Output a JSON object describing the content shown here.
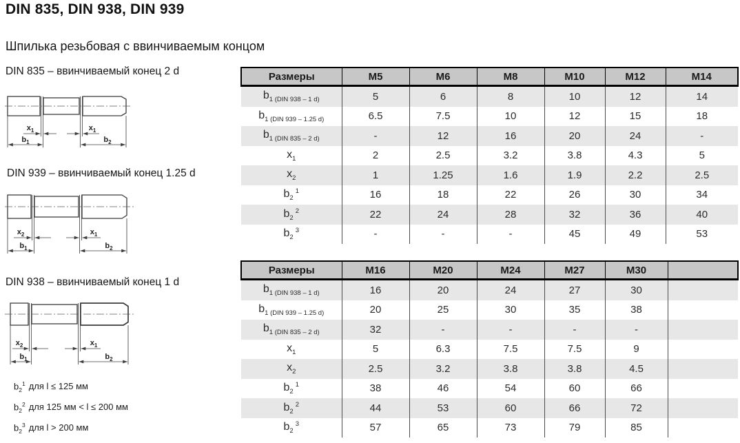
{
  "page": {
    "title": "DIN 835, DIN 938, DIN 939",
    "subtitle": "Шпилька резьбовая с ввинчиваемым концом"
  },
  "colors": {
    "header_bg": "#c7c7c7",
    "stripe_bg": "#e7e7e7",
    "border": "#000000",
    "drawing_line": "#3b3b3b"
  },
  "drawings": [
    {
      "caption": "DIN 835 – ввинчиваемый конец 2 d",
      "xl": {
        "base": "x",
        "sub": "1"
      },
      "xr": {
        "base": "x",
        "sub": "1"
      },
      "bl": {
        "base": "b",
        "sub": "1"
      },
      "br": {
        "base": "b",
        "sub": "2"
      }
    },
    {
      "caption": "DIN 939 – ввинчиваемый конец 1.25 d",
      "xl": {
        "base": "x",
        "sub": "2"
      },
      "xr": {
        "base": "x",
        "sub": "1"
      },
      "bl": {
        "base": "b",
        "sub": "1"
      },
      "br": {
        "base": "b",
        "sub": "2"
      }
    },
    {
      "caption": "DIN 938 – ввинчиваемый конец 1 d",
      "xl": {
        "base": "x",
        "sub": "2"
      },
      "xr": {
        "base": "x",
        "sub": "1"
      },
      "bl": {
        "base": "b",
        "sub": "1"
      },
      "br": {
        "base": "b",
        "sub": "2"
      }
    }
  ],
  "tables": [
    {
      "header": [
        "Размеры",
        "M5",
        "M6",
        "M8",
        "M10",
        "M12",
        "M14"
      ],
      "rows": [
        {
          "label": {
            "base": "b",
            "sub": "1 (DIN 938 – 1 d)",
            "sup": ""
          },
          "values": [
            "5",
            "6",
            "8",
            "10",
            "12",
            "14"
          ]
        },
        {
          "label": {
            "base": "b",
            "sub": "1 (DIN 939 – 1.25 d)",
            "sup": ""
          },
          "values": [
            "6.5",
            "7.5",
            "10",
            "12",
            "15",
            "18"
          ]
        },
        {
          "label": {
            "base": "b",
            "sub": "1 (DIN 835 – 2 d)",
            "sup": ""
          },
          "values": [
            "-",
            "12",
            "16",
            "20",
            "24",
            "-"
          ]
        },
        {
          "label": {
            "base": "x",
            "sub": "1",
            "sup": ""
          },
          "values": [
            "2",
            "2.5",
            "3.2",
            "3.8",
            "4.3",
            "5"
          ]
        },
        {
          "label": {
            "base": "x",
            "sub": "2",
            "sup": ""
          },
          "values": [
            "1",
            "1.25",
            "1.6",
            "1.9",
            "2.2",
            "2.5"
          ]
        },
        {
          "label": {
            "base": "b",
            "sub": "2",
            "sup": "1"
          },
          "values": [
            "16",
            "18",
            "22",
            "26",
            "30",
            "34"
          ]
        },
        {
          "label": {
            "base": "b",
            "sub": "2",
            "sup": "2"
          },
          "values": [
            "22",
            "24",
            "28",
            "32",
            "36",
            "40"
          ]
        },
        {
          "label": {
            "base": "b",
            "sub": "2",
            "sup": "3"
          },
          "values": [
            "-",
            "-",
            "-",
            "45",
            "49",
            "53"
          ]
        }
      ]
    },
    {
      "header": [
        "Размеры",
        "M16",
        "M20",
        "M24",
        "M27",
        "M30",
        ""
      ],
      "rows": [
        {
          "label": {
            "base": "b",
            "sub": "1 (DIN 938 – 1 d)",
            "sup": ""
          },
          "values": [
            "16",
            "20",
            "24",
            "27",
            "30",
            ""
          ]
        },
        {
          "label": {
            "base": "b",
            "sub": "1 (DIN 939 – 1.25 d)",
            "sup": ""
          },
          "values": [
            "20",
            "25",
            "30",
            "35",
            "38",
            ""
          ]
        },
        {
          "label": {
            "base": "b",
            "sub": "1 (DIN 835 – 2 d)",
            "sup": ""
          },
          "values": [
            "32",
            "-",
            "-",
            "-",
            "-",
            ""
          ]
        },
        {
          "label": {
            "base": "x",
            "sub": "1",
            "sup": ""
          },
          "values": [
            "5",
            "6.3",
            "7.5",
            "7.5",
            "9",
            ""
          ]
        },
        {
          "label": {
            "base": "x",
            "sub": "2",
            "sup": ""
          },
          "values": [
            "2.5",
            "3.2",
            "3.8",
            "3.8",
            "4.5",
            ""
          ]
        },
        {
          "label": {
            "base": "b",
            "sub": "2",
            "sup": "1"
          },
          "values": [
            "38",
            "46",
            "54",
            "60",
            "66",
            ""
          ]
        },
        {
          "label": {
            "base": "b",
            "sub": "2",
            "sup": "2"
          },
          "values": [
            "44",
            "53",
            "60",
            "66",
            "72",
            ""
          ]
        },
        {
          "label": {
            "base": "b",
            "sub": "2",
            "sup": "3"
          },
          "values": [
            "57",
            "65",
            "73",
            "79",
            "85",
            ""
          ]
        }
      ]
    }
  ],
  "footnotes": [
    {
      "base": "b",
      "sub": "2",
      "sup": "1",
      "text": "для l ≤ 125 мм"
    },
    {
      "base": "b",
      "sub": "2",
      "sup": "2",
      "text": "для 125 мм < l ≤ 200 мм"
    },
    {
      "base": "b",
      "sub": "2",
      "sup": "3",
      "text": "для l > 200 мм"
    }
  ]
}
